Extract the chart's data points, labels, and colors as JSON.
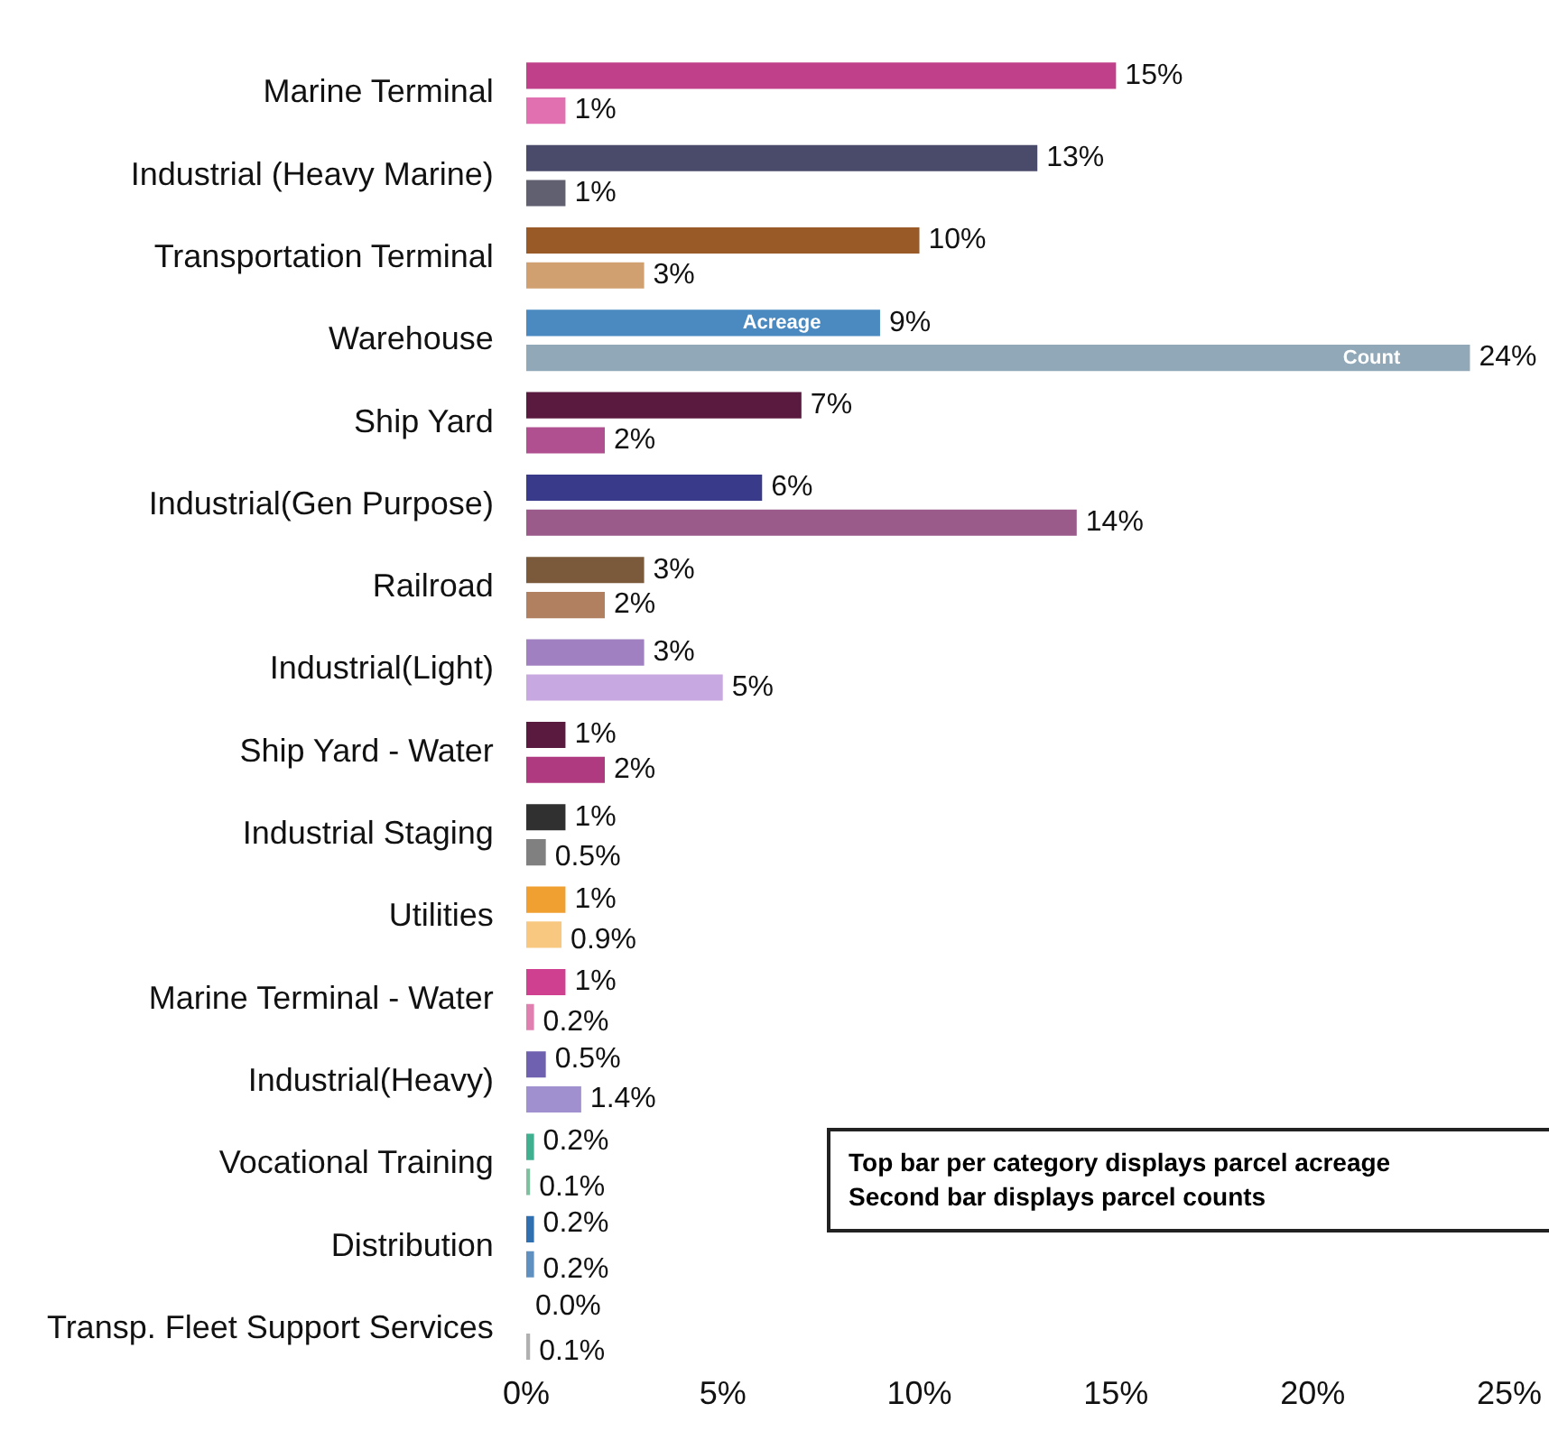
{
  "chart_data": {
    "type": "bar",
    "orientation": "horizontal",
    "categories": [
      "Marine Terminal",
      "Industrial (Heavy Marine)",
      "Transportation Terminal",
      "Warehouse",
      "Ship Yard",
      "Industrial(Gen Purpose)",
      "Railroad",
      "Industrial(Light)",
      "Ship Yard - Water",
      "Industrial Staging",
      "Utilities",
      "Marine Terminal - Water",
      "Industrial(Heavy)",
      "Vocational Training",
      "Distribution",
      "Transp. Fleet Support Services"
    ],
    "series": [
      {
        "colors": [
          "#c0408a",
          "#4a4a6a",
          "#9a5a28",
          "#4a8ac0",
          "#5a1a40",
          "#3a3a8a",
          "#7a5a3a",
          "#a080c0",
          "#5a1a40",
          "#303030",
          "#f0a030",
          "#d04090",
          "#7060b0",
          "#40b090",
          "#3070b0",
          "#909090"
        ],
        "values": [
          15,
          13,
          10,
          9,
          7,
          6,
          3,
          3,
          1,
          1,
          1,
          1,
          0.5,
          0.2,
          0.2,
          0.0
        ],
        "value_labels": [
          "15%",
          "13%",
          "10%",
          "9%",
          "7%",
          "6%",
          "3%",
          "3%",
          "1%",
          "1%",
          "1%",
          "1%",
          "0.5%",
          "0.2%",
          "0.2%",
          "0.0%"
        ]
      },
      {
        "colors": [
          "#e070b0",
          "#606070",
          "#d0a070",
          "#90a8b8",
          "#b05090",
          "#9a5a8a",
          "#b08060",
          "#c8a8e0",
          "#b03a80",
          "#808080",
          "#f8c880",
          "#e080b0",
          "#a090d0",
          "#80c0a0",
          "#6090c0",
          "#b0b0b0"
        ],
        "values": [
          1,
          1,
          3,
          24,
          2,
          14,
          2,
          5,
          2,
          0.5,
          0.9,
          0.2,
          1.4,
          0.1,
          0.2,
          0.1
        ],
        "value_labels": [
          "1%",
          "1%",
          "3%",
          "24%",
          "2%",
          "14%",
          "2%",
          "5%",
          "2%",
          "0.5%",
          "0.9%",
          "0.2%",
          "1.4%",
          "0.1%",
          "0.2%",
          "0.1%"
        ]
      }
    ],
    "xlim": [
      0,
      25
    ],
    "xticks": [
      {
        "value": 0,
        "label": "0%"
      },
      {
        "value": 5,
        "label": "5%"
      },
      {
        "value": 10,
        "label": "10%"
      },
      {
        "value": 15,
        "label": "15%"
      },
      {
        "value": 20,
        "label": "20%"
      },
      {
        "value": 25,
        "label": "25%"
      }
    ],
    "grid": false,
    "legend": false,
    "annotations": [
      {
        "text": "Acreage",
        "x": 6.5,
        "y": "Warehouse"
      },
      {
        "text": "Count",
        "x": 21.5,
        "y": "Warehouse"
      },
      "Top bar per category displays parcel acreage\nSecond bar displays parcel counts"
    ]
  }
}
